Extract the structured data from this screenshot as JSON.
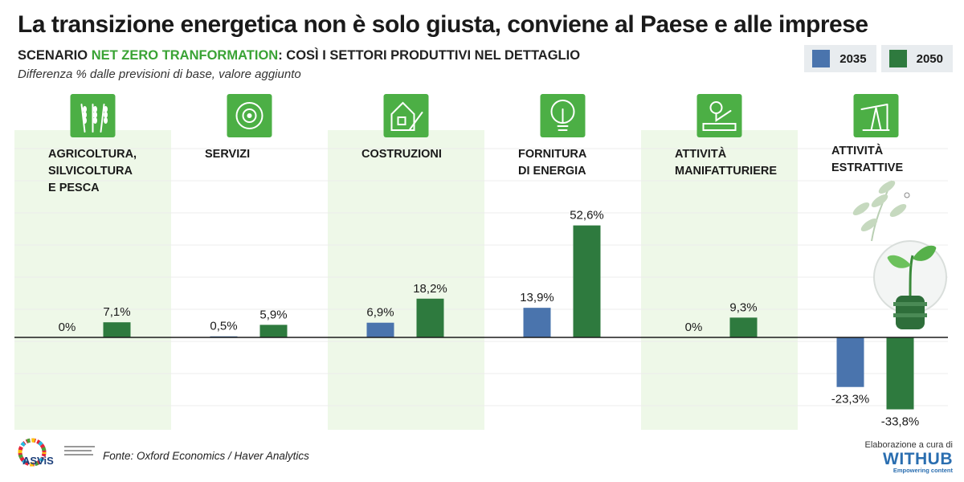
{
  "header": {
    "title": "La transizione energetica non è solo giusta, conviene al Paese e alle imprese",
    "subtitle_prefix": "SCENARIO ",
    "subtitle_highlight": "NET ZERO TRANFORMATION",
    "subtitle_suffix": ": COSÌ I SETTORI PRODUTTIVI NEL DETTAGLIO",
    "note": "Differenza % dalle previsioni di base, valore aggiunto"
  },
  "legend": [
    {
      "label": "2035",
      "color": "#4a74ad"
    },
    {
      "label": "2050",
      "color": "#2e7a3e"
    }
  ],
  "colors": {
    "accent_green": "#3aa335",
    "band": "#eef8e8",
    "icon_bg": "#4caf45",
    "bar_2035": "#4a74ad",
    "bar_2050": "#2e7a3e"
  },
  "sectors": [
    {
      "name_lines": [
        "AGRICOLTURA,",
        "SILVICOLTURA",
        "E PESCA"
      ],
      "icon": "wheat-icon"
    },
    {
      "name_lines": [
        "SERVIZI"
      ],
      "icon": "gear-service-icon"
    },
    {
      "name_lines": [
        "COSTRUZIONI"
      ],
      "icon": "house-construction-icon"
    },
    {
      "name_lines": [
        "FORNITURA",
        "DI ENERGIA"
      ],
      "icon": "lightbulb-icon"
    },
    {
      "name_lines": [
        "ATTIVITÀ",
        "MANIFATTURIERE"
      ],
      "icon": "factory-robot-icon"
    },
    {
      "name_lines": [
        "ATTIVITÀ",
        "ESTRATTIVE"
      ],
      "icon": "oil-pump-icon"
    }
  ],
  "chart_data": {
    "type": "bar",
    "categories": [
      "AGRICOLTURA, SILVICOLTURA E PESCA",
      "SERVIZI",
      "COSTRUZIONI",
      "FORNITURA DI ENERGIA",
      "ATTIVITÀ MANIFATTURIERE",
      "ATTIVITÀ ESTRATTIVE"
    ],
    "series": [
      {
        "name": "2035",
        "values": [
          0,
          0.5,
          6.9,
          13.9,
          0,
          -23.3
        ],
        "labels": [
          "0%",
          "0,5%",
          "6,9%",
          "13,9%",
          "0%",
          "-23,3%"
        ]
      },
      {
        "name": "2050",
        "values": [
          7.1,
          5.9,
          18.2,
          52.6,
          9.3,
          -33.8
        ],
        "labels": [
          "7,1%",
          "5,9%",
          "18,2%",
          "52,6%",
          "9,3%",
          "-33,8%"
        ]
      }
    ],
    "legend": "top-right",
    "grid": true
  },
  "footer": {
    "source": "Fonte: Oxford Economics / Haver Analytics",
    "credit": "Elaborazione a cura di",
    "brand": "WITHUB",
    "brand_tagline": "Empowering content",
    "logo_text": "ASViS"
  }
}
